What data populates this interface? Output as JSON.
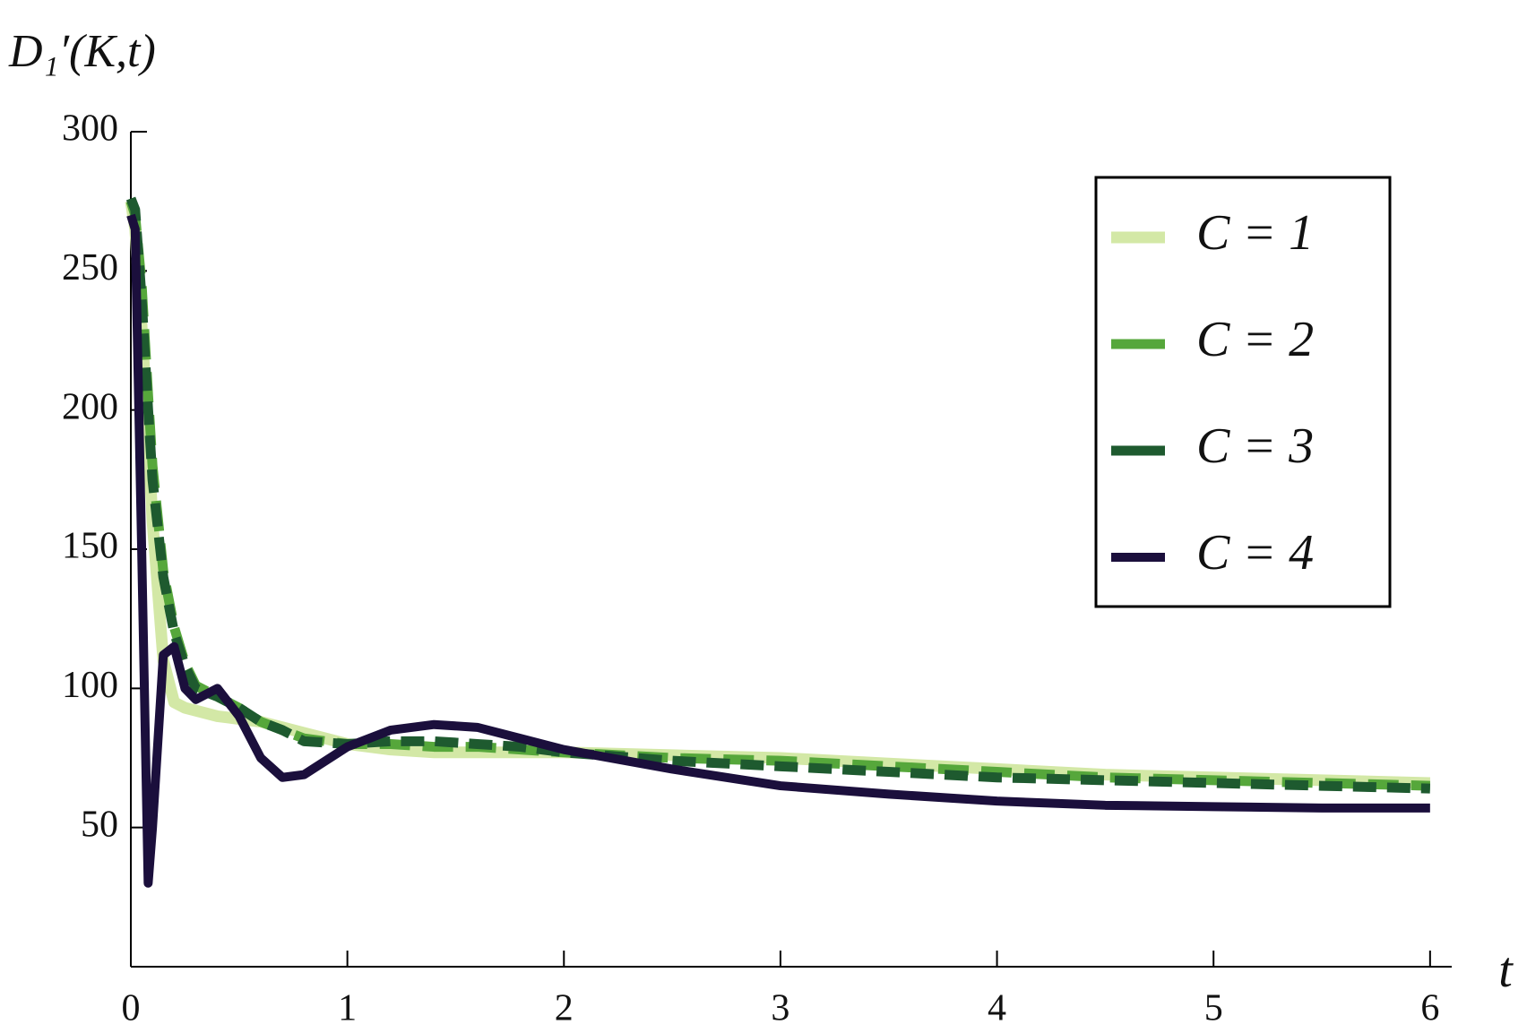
{
  "chart_data": {
    "type": "line",
    "y_label": "D₁′(K,t)",
    "x_label": "t",
    "x": [
      0,
      0.02,
      0.05,
      0.08,
      0.1,
      0.15,
      0.2,
      0.25,
      0.3,
      0.4,
      0.5,
      0.6,
      0.7,
      0.8,
      1,
      1.2,
      1.4,
      1.6,
      1.8,
      2,
      2.5,
      3,
      3.5,
      4,
      4.5,
      5,
      5.5,
      6
    ],
    "series": [
      {
        "name": "C = 1",
        "color": "#d3e8a6",
        "values": [
          275,
          265,
          230,
          190,
          160,
          110,
          95,
          93,
          92,
          90,
          89,
          88,
          86,
          84,
          80,
          78,
          77,
          77,
          77,
          77,
          76,
          75,
          73,
          71,
          69,
          68,
          67,
          66
        ]
      },
      {
        "name": "C = 2",
        "color": "#56a73b",
        "values": [
          275,
          270,
          245,
          205,
          180,
          142,
          122,
          109,
          101,
          97,
          93,
          88,
          85,
          82,
          80,
          80,
          79,
          79,
          78,
          77,
          75,
          74,
          72,
          70,
          68,
          67,
          66,
          65
        ]
      },
      {
        "name": "C = 3",
        "color": "#1e5a2f",
        "values": [
          276,
          272,
          240,
          200,
          175,
          140,
          120,
          108,
          100,
          97,
          93,
          88,
          85,
          81,
          80,
          81,
          81,
          80,
          79,
          77,
          74,
          72,
          70,
          68,
          67,
          66,
          65,
          64
        ]
      },
      {
        "name": "C = 4",
        "color": "#1b0f3c",
        "values": [
          270,
          265,
          150,
          30,
          50,
          112,
          115,
          100,
          96,
          100,
          90,
          75,
          68,
          69,
          79,
          85,
          87,
          86,
          82,
          78,
          71,
          65,
          62,
          59.5,
          58,
          57.5,
          57,
          57
        ]
      }
    ],
    "xlim": [
      0,
      6.1
    ],
    "ylim": [
      0,
      300
    ],
    "xticks": [
      0,
      1,
      2,
      3,
      4,
      5,
      6
    ],
    "yticks": [
      50,
      100,
      150,
      200,
      250,
      300
    ]
  }
}
